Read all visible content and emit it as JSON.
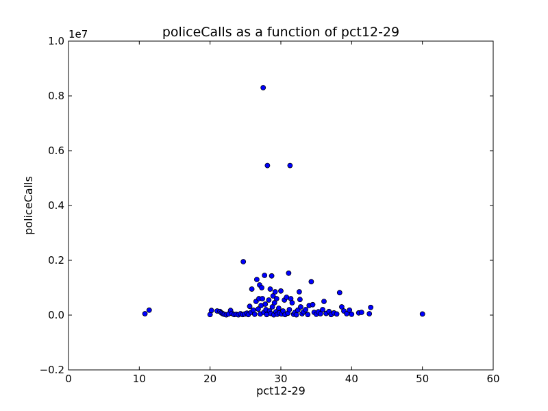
{
  "chart_data": {
    "type": "scatter",
    "title": "policeCalls as a function of pct12-29",
    "xlabel": "pct12-29",
    "ylabel": "policeCalls",
    "y_multiplier": "1e7",
    "xlim": [
      0,
      60
    ],
    "ylim": [
      -0.2,
      1.0
    ],
    "x_ticks": [
      0,
      10,
      20,
      30,
      40,
      50,
      60
    ],
    "x_tick_labels": [
      "0",
      "10",
      "20",
      "30",
      "40",
      "50",
      "60"
    ],
    "y_ticks": [
      -0.2,
      0.0,
      0.2,
      0.4,
      0.6,
      0.8,
      1.0
    ],
    "y_tick_labels": [
      "−0.2",
      "0.0",
      "0.2",
      "0.4",
      "0.6",
      "0.8",
      "1.0"
    ],
    "grid": false,
    "marker_color": "#0000ff",
    "marker_edge": "#000000",
    "points": [
      {
        "x": 10.8,
        "y": 0.005
      },
      {
        "x": 11.4,
        "y": 0.018
      },
      {
        "x": 20.0,
        "y": 0.002
      },
      {
        "x": 20.2,
        "y": 0.017
      },
      {
        "x": 21.0,
        "y": 0.015
      },
      {
        "x": 21.4,
        "y": 0.013
      },
      {
        "x": 21.6,
        "y": 0.008
      },
      {
        "x": 21.8,
        "y": 0.005
      },
      {
        "x": 22.0,
        "y": 0.003
      },
      {
        "x": 22.3,
        "y": 0.001
      },
      {
        "x": 22.6,
        "y": 0.004
      },
      {
        "x": 22.9,
        "y": 0.017
      },
      {
        "x": 23.1,
        "y": 0.006
      },
      {
        "x": 23.4,
        "y": 0.002
      },
      {
        "x": 23.7,
        "y": 0.003
      },
      {
        "x": 24.0,
        "y": 0.001
      },
      {
        "x": 24.3,
        "y": 0.005
      },
      {
        "x": 24.6,
        "y": 0.002
      },
      {
        "x": 24.7,
        "y": 0.195
      },
      {
        "x": 24.9,
        "y": 0.004
      },
      {
        "x": 25.2,
        "y": 0.007
      },
      {
        "x": 25.4,
        "y": 0.002
      },
      {
        "x": 25.6,
        "y": 0.032
      },
      {
        "x": 25.8,
        "y": 0.01
      },
      {
        "x": 25.9,
        "y": 0.095
      },
      {
        "x": 26.1,
        "y": 0.018
      },
      {
        "x": 26.3,
        "y": 0.003
      },
      {
        "x": 26.5,
        "y": 0.05
      },
      {
        "x": 26.6,
        "y": 0.13
      },
      {
        "x": 26.8,
        "y": 0.022
      },
      {
        "x": 26.9,
        "y": 0.06
      },
      {
        "x": 27.0,
        "y": 0.11
      },
      {
        "x": 27.1,
        "y": 0.004
      },
      {
        "x": 27.2,
        "y": 0.035
      },
      {
        "x": 27.3,
        "y": 0.1
      },
      {
        "x": 27.4,
        "y": 0.06
      },
      {
        "x": 27.5,
        "y": 0.83
      },
      {
        "x": 27.6,
        "y": 0.01
      },
      {
        "x": 27.7,
        "y": 0.145
      },
      {
        "x": 27.8,
        "y": 0.04
      },
      {
        "x": 27.9,
        "y": 0.02
      },
      {
        "x": 28.0,
        "y": 0.002
      },
      {
        "x": 28.1,
        "y": 0.546
      },
      {
        "x": 28.3,
        "y": 0.055
      },
      {
        "x": 28.4,
        "y": 0.015
      },
      {
        "x": 28.5,
        "y": 0.095
      },
      {
        "x": 28.6,
        "y": 0.006
      },
      {
        "x": 28.7,
        "y": 0.143
      },
      {
        "x": 28.8,
        "y": 0.03
      },
      {
        "x": 28.9,
        "y": 0.07
      },
      {
        "x": 29.0,
        "y": 0.001
      },
      {
        "x": 29.1,
        "y": 0.045
      },
      {
        "x": 29.2,
        "y": 0.085
      },
      {
        "x": 29.3,
        "y": 0.012
      },
      {
        "x": 29.4,
        "y": 0.06
      },
      {
        "x": 29.5,
        "y": 0.003
      },
      {
        "x": 29.7,
        "y": 0.025
      },
      {
        "x": 29.8,
        "y": 0.008
      },
      {
        "x": 30.0,
        "y": 0.088
      },
      {
        "x": 30.1,
        "y": 0.004
      },
      {
        "x": 30.3,
        "y": 0.015
      },
      {
        "x": 30.5,
        "y": 0.055
      },
      {
        "x": 30.6,
        "y": 0.002
      },
      {
        "x": 30.8,
        "y": 0.065
      },
      {
        "x": 31.0,
        "y": 0.007
      },
      {
        "x": 31.1,
        "y": 0.153
      },
      {
        "x": 31.2,
        "y": 0.02
      },
      {
        "x": 31.3,
        "y": 0.546
      },
      {
        "x": 31.4,
        "y": 0.06
      },
      {
        "x": 31.6,
        "y": 0.045
      },
      {
        "x": 31.8,
        "y": 0.003
      },
      {
        "x": 32.0,
        "y": 0.01
      },
      {
        "x": 32.2,
        "y": 0.001
      },
      {
        "x": 32.4,
        "y": 0.018
      },
      {
        "x": 32.6,
        "y": 0.085
      },
      {
        "x": 32.7,
        "y": 0.057
      },
      {
        "x": 32.8,
        "y": 0.03
      },
      {
        "x": 33.0,
        "y": 0.005
      },
      {
        "x": 33.2,
        "y": 0.012
      },
      {
        "x": 33.5,
        "y": 0.02
      },
      {
        "x": 33.8,
        "y": 0.002
      },
      {
        "x": 34.0,
        "y": 0.035
      },
      {
        "x": 34.3,
        "y": 0.122
      },
      {
        "x": 34.5,
        "y": 0.038
      },
      {
        "x": 34.7,
        "y": 0.01
      },
      {
        "x": 35.0,
        "y": 0.003
      },
      {
        "x": 35.3,
        "y": 0.012
      },
      {
        "x": 35.6,
        "y": 0.005
      },
      {
        "x": 35.9,
        "y": 0.02
      },
      {
        "x": 36.1,
        "y": 0.05
      },
      {
        "x": 36.4,
        "y": 0.006
      },
      {
        "x": 36.8,
        "y": 0.013
      },
      {
        "x": 37.1,
        "y": 0.002
      },
      {
        "x": 37.5,
        "y": 0.008
      },
      {
        "x": 37.9,
        "y": 0.004
      },
      {
        "x": 38.3,
        "y": 0.082
      },
      {
        "x": 38.6,
        "y": 0.03
      },
      {
        "x": 38.9,
        "y": 0.015
      },
      {
        "x": 39.3,
        "y": 0.005
      },
      {
        "x": 39.7,
        "y": 0.018
      },
      {
        "x": 40.0,
        "y": 0.003
      },
      {
        "x": 41.0,
        "y": 0.008
      },
      {
        "x": 41.4,
        "y": 0.01
      },
      {
        "x": 42.5,
        "y": 0.005
      },
      {
        "x": 42.7,
        "y": 0.028
      },
      {
        "x": 50.0,
        "y": 0.004
      }
    ]
  }
}
